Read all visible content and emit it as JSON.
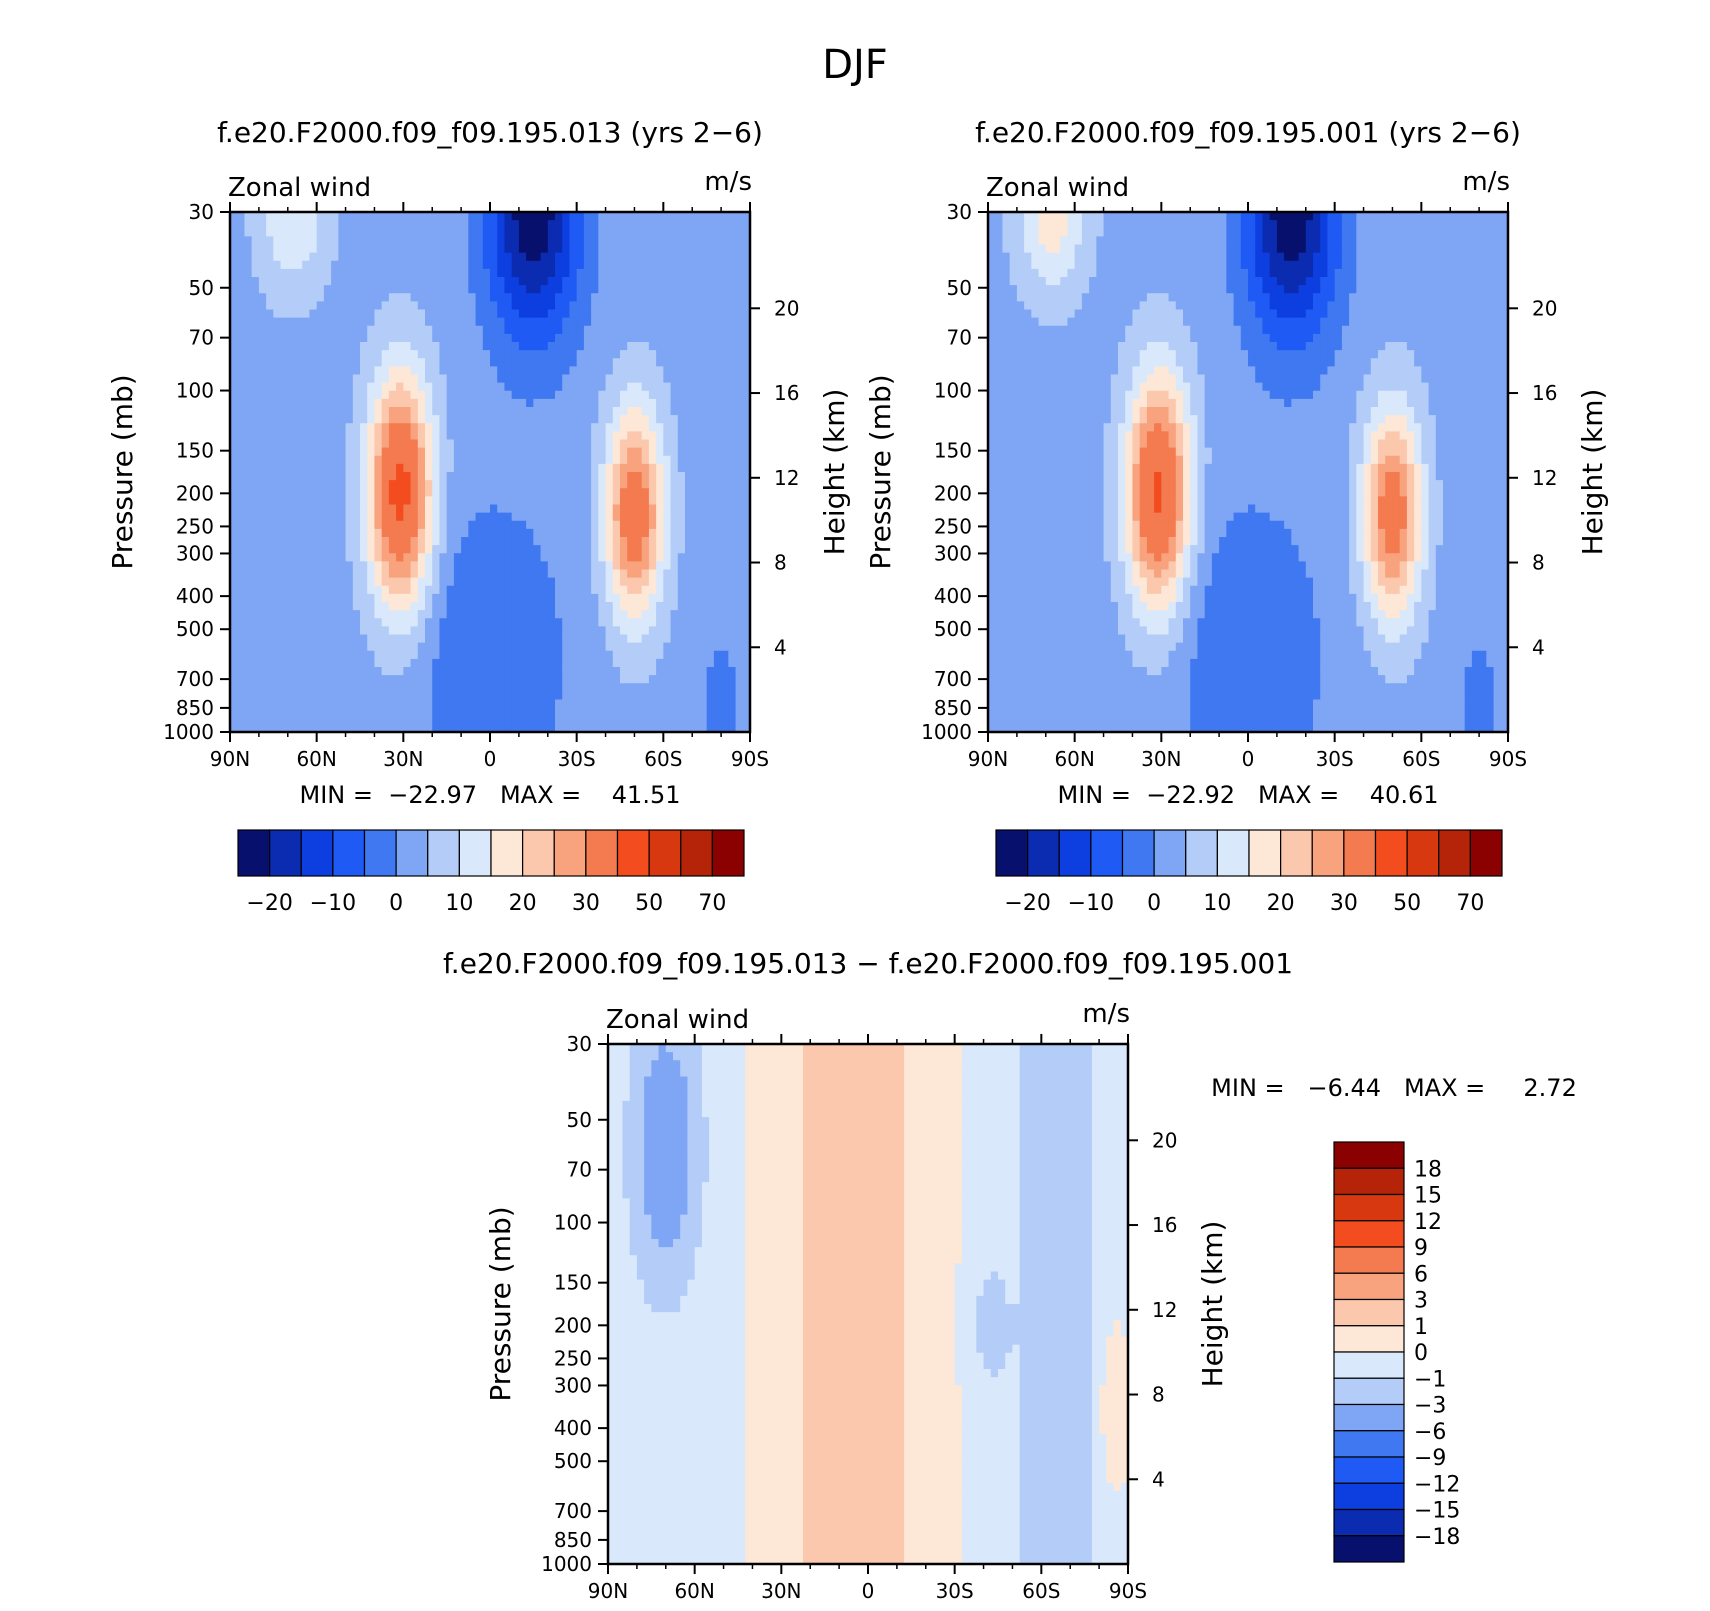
{
  "figure": {
    "title": "DJF"
  },
  "chart_data": [
    {
      "type": "contour",
      "panel": "model-a",
      "title": "f.e20.F2000.f09_f09.195.013 (yrs 2−6)",
      "variable_label": "Zonal wind",
      "units_label": "m/s",
      "xlabel": "",
      "ylabel": "Pressure (mb)",
      "ylabel_right": "Height (km)",
      "x_ticks": [
        "90N",
        "60N",
        "30N",
        "0",
        "30S",
        "60S",
        "90S"
      ],
      "x_range": [
        90,
        -90
      ],
      "y_ticks": [
        30,
        50,
        70,
        100,
        150,
        200,
        250,
        300,
        400,
        500,
        700,
        850,
        1000
      ],
      "y_range": [
        1000,
        30
      ],
      "height_ticks": [
        20,
        16,
        12,
        8,
        4
      ],
      "stats_text": "MIN =  −22.97   MAX =    41.51",
      "min": -22.97,
      "max": 41.51,
      "colorbar": {
        "orientation": "horizontal",
        "levels": [
          -20,
          -15,
          -10,
          -5,
          0,
          5,
          10,
          15,
          20,
          25,
          30,
          40,
          50,
          60,
          70
        ],
        "tick_labels": [
          "−20",
          "−10",
          "0",
          "10",
          "20",
          "30",
          "50",
          "70"
        ],
        "colors": [
          "#08106e",
          "#0b2bb0",
          "#0d3fe0",
          "#1f5af5",
          "#3f78f0",
          "#7fa6f5",
          "#b3cdf8",
          "#d9e9fb",
          "#fde7d7",
          "#fbc8ad",
          "#f8a27e",
          "#f47a4f",
          "#f24c1f",
          "#d83810",
          "#b52408",
          "#8b0000"
        ]
      },
      "features": [
        {
          "name": "NH subtropical jet",
          "lat": 30,
          "pressure_mb": 200,
          "value": 41.51
        },
        {
          "name": "SH subtropical jet",
          "lat": -50,
          "pressure_mb": 220,
          "value": 35
        },
        {
          "name": "Equatorial easterlies",
          "lat": -15,
          "pressure_mb": 30,
          "value": -22.97
        }
      ]
    },
    {
      "type": "contour",
      "panel": "model-b",
      "title": "f.e20.F2000.f09_f09.195.001 (yrs 2−6)",
      "variable_label": "Zonal wind",
      "units_label": "m/s",
      "xlabel": "",
      "ylabel": "Pressure (mb)",
      "ylabel_right": "Height (km)",
      "x_ticks": [
        "90N",
        "60N",
        "30N",
        "0",
        "30S",
        "60S",
        "90S"
      ],
      "x_range": [
        90,
        -90
      ],
      "y_ticks": [
        30,
        50,
        70,
        100,
        150,
        200,
        250,
        300,
        400,
        500,
        700,
        850,
        1000
      ],
      "y_range": [
        1000,
        30
      ],
      "height_ticks": [
        20,
        16,
        12,
        8,
        4
      ],
      "stats_text": "MIN =  −22.92   MAX =    40.61",
      "min": -22.92,
      "max": 40.61,
      "colorbar": {
        "orientation": "horizontal",
        "levels": [
          -20,
          -15,
          -10,
          -5,
          0,
          5,
          10,
          15,
          20,
          25,
          30,
          40,
          50,
          60,
          70
        ],
        "tick_labels": [
          "−20",
          "−10",
          "0",
          "10",
          "20",
          "30",
          "50",
          "70"
        ],
        "colors": [
          "#08106e",
          "#0b2bb0",
          "#0d3fe0",
          "#1f5af5",
          "#3f78f0",
          "#7fa6f5",
          "#b3cdf8",
          "#d9e9fb",
          "#fde7d7",
          "#fbc8ad",
          "#f8a27e",
          "#f47a4f",
          "#f24c1f",
          "#d83810",
          "#b52408",
          "#8b0000"
        ]
      },
      "features": [
        {
          "name": "NH subtropical jet",
          "lat": 30,
          "pressure_mb": 200,
          "value": 40.61
        },
        {
          "name": "SH subtropical jet",
          "lat": -50,
          "pressure_mb": 220,
          "value": 34
        },
        {
          "name": "Equatorial easterlies",
          "lat": -15,
          "pressure_mb": 30,
          "value": -22.92
        }
      ]
    },
    {
      "type": "contour",
      "panel": "difference",
      "title": "f.e20.F2000.f09_f09.195.013 − f.e20.F2000.f09_f09.195.001",
      "variable_label": "Zonal wind",
      "units_label": "m/s",
      "xlabel": "",
      "ylabel": "Pressure (mb)",
      "ylabel_right": "Height (km)",
      "x_ticks": [
        "90N",
        "60N",
        "30N",
        "0",
        "30S",
        "60S",
        "90S"
      ],
      "x_range": [
        90,
        -90
      ],
      "y_ticks": [
        30,
        50,
        70,
        100,
        150,
        200,
        250,
        300,
        400,
        500,
        700,
        850,
        1000
      ],
      "y_range": [
        1000,
        30
      ],
      "height_ticks": [
        20,
        16,
        12,
        8,
        4
      ],
      "stats_text": "MIN =   −6.44   MAX =     2.72",
      "min": -6.44,
      "max": 2.72,
      "colorbar": {
        "orientation": "vertical",
        "levels": [
          18,
          15,
          12,
          9,
          6,
          3,
          1,
          0,
          -1,
          -3,
          -6,
          -9,
          -12,
          -15,
          -18
        ],
        "tick_labels": [
          "18",
          "15",
          "12",
          "9",
          "6",
          "3",
          "1",
          "0",
          "−1",
          "−3",
          "−6",
          "−9",
          "−12",
          "−15",
          "−18"
        ],
        "colors": [
          "#8b0000",
          "#b52408",
          "#d83810",
          "#f24c1f",
          "#f47a4f",
          "#f8a27e",
          "#fbc8ad",
          "#fde7d7",
          "#d9e9fb",
          "#b3cdf8",
          "#7fa6f5",
          "#3f78f0",
          "#1f5af5",
          "#0d3fe0",
          "#0b2bb0",
          "#08106e"
        ]
      },
      "features": [
        {
          "name": "NH high-latitude negative band",
          "lat": 70,
          "pressure_mb": 60,
          "value": -6.44
        },
        {
          "name": "Tropical positive region",
          "lat": 0,
          "pressure_mb": 300,
          "value": 2.72
        }
      ]
    }
  ]
}
